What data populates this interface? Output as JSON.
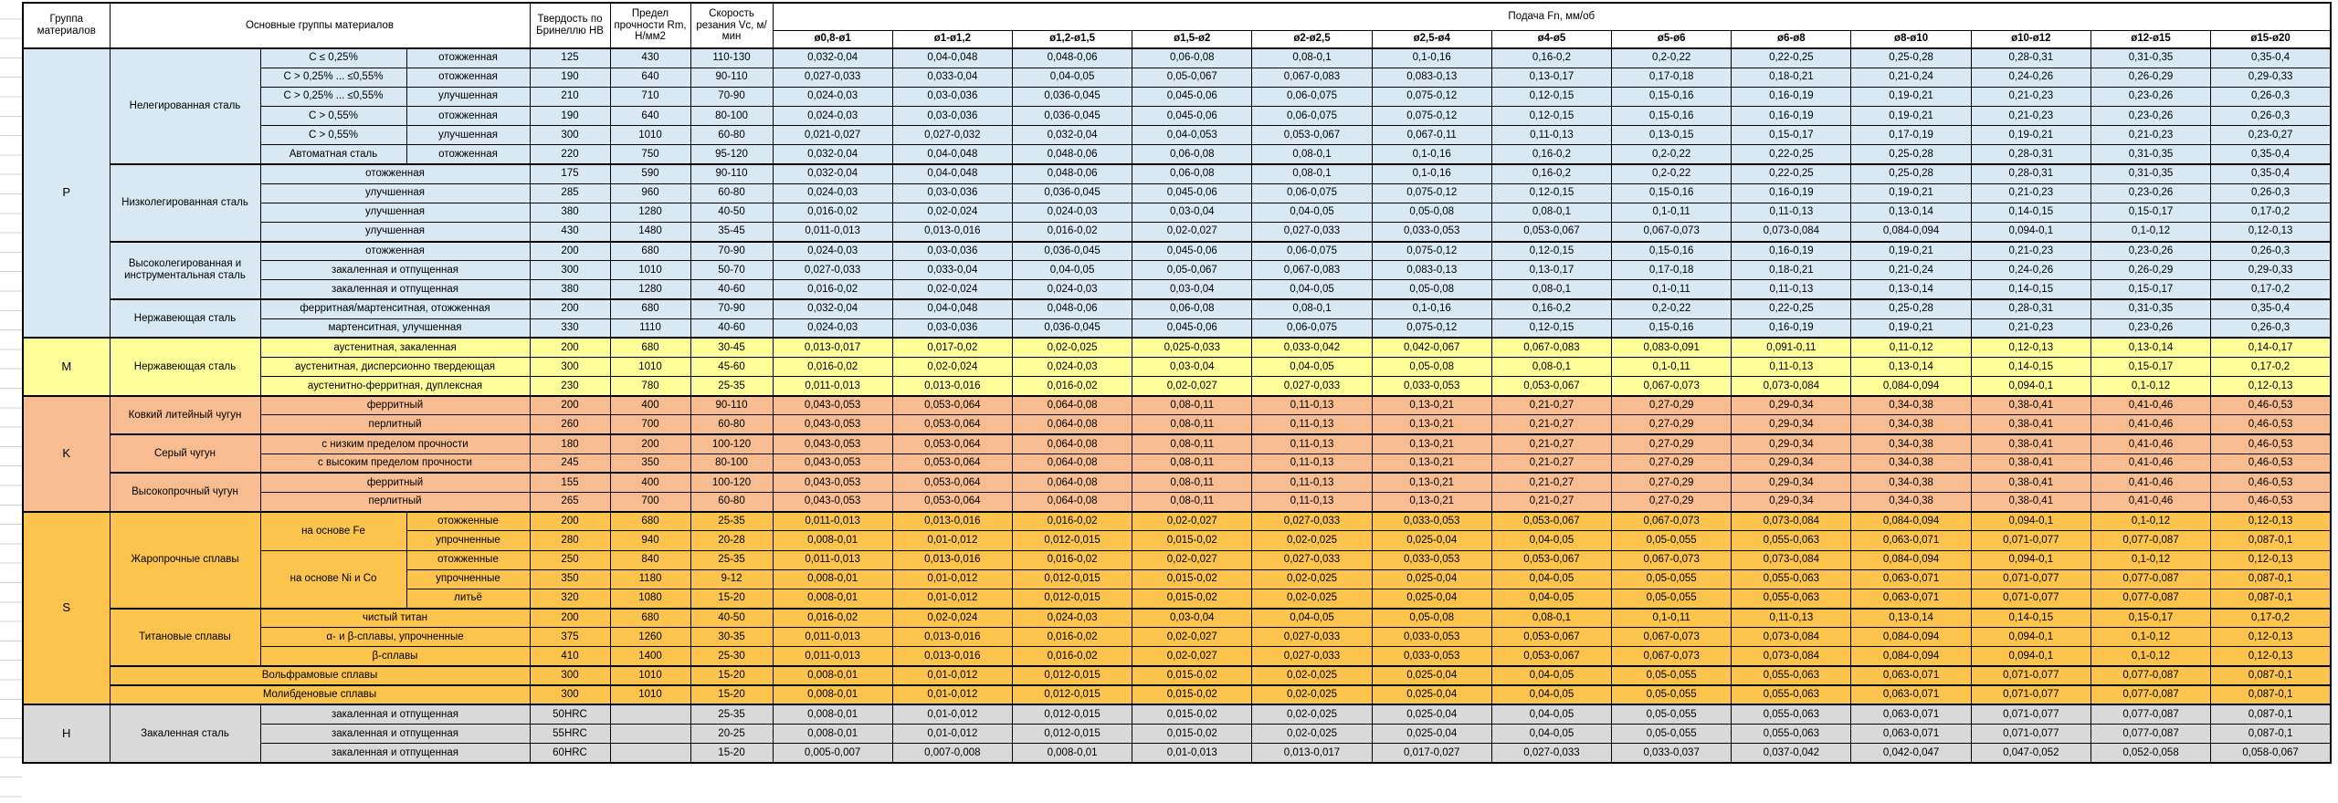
{
  "header": {
    "group": "Группа материалов",
    "main_groups": "Основные группы материалов",
    "hardness": "Твердость по Бринеллю HB",
    "strength": "Предел прочности Rm, Н/мм2",
    "speed": "Скорость резания Vc, м/мин",
    "feed": "Подача Fn, мм/об",
    "diameters": [
      "ø0,8-ø1",
      "ø1-ø1,2",
      "ø1,2-ø1,5",
      "ø1,5-ø2",
      "ø2-ø2,5",
      "ø2,5-ø4",
      "ø4-ø5",
      "ø5-ø6",
      "ø6-ø8",
      "ø8-ø10",
      "ø10-ø12",
      "ø12-ø15",
      "ø15-ø20"
    ]
  },
  "colors": {
    "P": "#D9E9F3",
    "M": "#FFFF99",
    "K": "#F7BC8F",
    "S": "#FCC44D",
    "H": "#D9D9D9",
    "grid": "#000000",
    "sheet_line": "#d4d4d4"
  },
  "feed_profiles": {
    "A": [
      "0,032-0,04",
      "0,04-0,048",
      "0,048-0,06",
      "0,06-0,08",
      "0,08-0,1",
      "0,1-0,16",
      "0,16-0,2",
      "0,2-0,22",
      "0,22-0,25",
      "0,25-0,28",
      "0,28-0,31",
      "0,31-0,35",
      "0,35-0,4"
    ],
    "B": [
      "0,027-0,033",
      "0,033-0,04",
      "0,04-0,05",
      "0,05-0,067",
      "0,067-0,083",
      "0,083-0,13",
      "0,13-0,17",
      "0,17-0,18",
      "0,18-0,21",
      "0,21-0,24",
      "0,24-0,26",
      "0,26-0,29",
      "0,29-0,33"
    ],
    "C": [
      "0,024-0,03",
      "0,03-0,036",
      "0,036-0,045",
      "0,045-0,06",
      "0,06-0,075",
      "0,075-0,12",
      "0,12-0,15",
      "0,15-0,16",
      "0,16-0,19",
      "0,19-0,21",
      "0,21-0,23",
      "0,23-0,26",
      "0,26-0,3"
    ],
    "D": [
      "0,021-0,027",
      "0,027-0,032",
      "0,032-0,04",
      "0,04-0,053",
      "0,053-0,067",
      "0,067-0,11",
      "0,11-0,13",
      "0,13-0,15",
      "0,15-0,17",
      "0,17-0,19",
      "0,19-0,21",
      "0,21-0,23",
      "0,23-0,27"
    ],
    "E": [
      "0,016-0,02",
      "0,02-0,024",
      "0,024-0,03",
      "0,03-0,04",
      "0,04-0,05",
      "0,05-0,08",
      "0,08-0,1",
      "0,1-0,11",
      "0,11-0,13",
      "0,13-0,14",
      "0,14-0,15",
      "0,15-0,17",
      "0,17-0,2"
    ],
    "F": [
      "0,011-0,013",
      "0,013-0,016",
      "0,016-0,02",
      "0,02-0,027",
      "0,027-0,033",
      "0,033-0,053",
      "0,053-0,067",
      "0,067-0,073",
      "0,073-0,084",
      "0,084-0,094",
      "0,094-0,1",
      "0,1-0,12",
      "0,12-0,13"
    ],
    "G": [
      "0,013-0,017",
      "0,017-0,02",
      "0,02-0,025",
      "0,025-0,033",
      "0,033-0,042",
      "0,042-0,067",
      "0,067-0,083",
      "0,083-0,091",
      "0,091-0,11",
      "0,11-0,12",
      "0,12-0,13",
      "0,13-0,14",
      "0,14-0,17"
    ],
    "H": [
      "0,043-0,053",
      "0,053-0,064",
      "0,064-0,08",
      "0,08-0,11",
      "0,11-0,13",
      "0,13-0,21",
      "0,21-0,27",
      "0,27-0,29",
      "0,29-0,34",
      "0,34-0,38",
      "0,38-0,41",
      "0,41-0,46",
      "0,46-0,53"
    ],
    "I": [
      "0,008-0,01",
      "0,01-0,012",
      "0,012-0,015",
      "0,015-0,02",
      "0,02-0,025",
      "0,025-0,04",
      "0,04-0,05",
      "0,05-0,055",
      "0,055-0,063",
      "0,063-0,071",
      "0,071-0,077",
      "0,077-0,087",
      "0,087-0,1"
    ],
    "J": [
      "0,005-0,007",
      "0,007-0,008",
      "0,008-0,01",
      "0,01-0,013",
      "0,013-0,017",
      "0,017-0,027",
      "0,027-0,033",
      "0,033-0,037",
      "0,037-0,042",
      "0,042-0,047",
      "0,047-0,052",
      "0,052-0,058",
      "0,058-0,067"
    ]
  },
  "groups": [
    {
      "letter": "P",
      "blocks_rows": [
        {
          "left": [
            {
              "t": "Нелегированная сталь",
              "rs": 6
            },
            {
              "t": "C ≤ 0,25%"
            },
            {
              "t": "отожженная"
            }
          ],
          "hb": "125",
          "rm": "430",
          "vc": "110-130",
          "f": "A",
          "bs": true
        },
        {
          "left": [
            {
              "t": "C > 0,25% ... ≤0,55%"
            },
            {
              "t": "отожженная"
            }
          ],
          "hb": "190",
          "rm": "640",
          "vc": "90-110",
          "f": "B"
        },
        {
          "left": [
            {
              "t": "C > 0,25% ... ≤0,55%"
            },
            {
              "t": "улучшенная"
            }
          ],
          "hb": "210",
          "rm": "710",
          "vc": "70-90",
          "f": "C"
        },
        {
          "left": [
            {
              "t": "C > 0,55%"
            },
            {
              "t": "отожженная"
            }
          ],
          "hb": "190",
          "rm": "640",
          "vc": "80-100",
          "f": "C"
        },
        {
          "left": [
            {
              "t": "C > 0,55%"
            },
            {
              "t": "улучшенная"
            }
          ],
          "hb": "300",
          "rm": "1010",
          "vc": "60-80",
          "f": "D"
        },
        {
          "left": [
            {
              "t": "Автоматная сталь"
            },
            {
              "t": "отожженная"
            }
          ],
          "hb": "220",
          "rm": "750",
          "vc": "95-120",
          "f": "A"
        },
        {
          "left": [
            {
              "t": "Низколегированная сталь",
              "rs": 4
            },
            {
              "t": "отожженная",
              "cs": 2
            }
          ],
          "hb": "175",
          "rm": "590",
          "vc": "90-110",
          "f": "A",
          "bs": true
        },
        {
          "left": [
            {
              "t": "улучшенная",
              "cs": 2
            }
          ],
          "hb": "285",
          "rm": "960",
          "vc": "60-80",
          "f": "C"
        },
        {
          "left": [
            {
              "t": "улучшенная",
              "cs": 2
            }
          ],
          "hb": "380",
          "rm": "1280",
          "vc": "40-50",
          "f": "E"
        },
        {
          "left": [
            {
              "t": "улучшенная",
              "cs": 2
            }
          ],
          "hb": "430",
          "rm": "1480",
          "vc": "35-45",
          "f": "F"
        },
        {
          "left": [
            {
              "t": "Высоколегированная и инструментальная сталь",
              "rs": 3
            },
            {
              "t": "отожженная",
              "cs": 2
            }
          ],
          "hb": "200",
          "rm": "680",
          "vc": "70-90",
          "f": "C",
          "bs": true
        },
        {
          "left": [
            {
              "t": "закаленная и отпущенная",
              "cs": 2
            }
          ],
          "hb": "300",
          "rm": "1010",
          "vc": "50-70",
          "f": "B"
        },
        {
          "left": [
            {
              "t": "закаленная и отпущенная",
              "cs": 2
            }
          ],
          "hb": "380",
          "rm": "1280",
          "vc": "40-60",
          "f": "E"
        },
        {
          "left": [
            {
              "t": "Нержавеющая сталь",
              "rs": 2
            },
            {
              "t": "ферритная/мартенситная, отожженная",
              "cs": 2
            }
          ],
          "hb": "200",
          "rm": "680",
          "vc": "70-90",
          "f": "A",
          "bs": true
        },
        {
          "left": [
            {
              "t": "мартенситная, улучшенная",
              "cs": 2
            }
          ],
          "hb": "330",
          "rm": "1110",
          "vc": "40-60",
          "f": "C"
        }
      ]
    },
    {
      "letter": "M",
      "blocks_rows": [
        {
          "left": [
            {
              "t": "Нержавеющая сталь",
              "rs": 3
            },
            {
              "t": "аустенитная, закаленная",
              "cs": 2
            }
          ],
          "hb": "200",
          "rm": "680",
          "vc": "30-45",
          "f": "G"
        },
        {
          "left": [
            {
              "t": "аустенитная, дисперсионно твердеющая",
              "cs": 2
            }
          ],
          "hb": "300",
          "rm": "1010",
          "vc": "45-60",
          "f": "E"
        },
        {
          "left": [
            {
              "t": "аустенитно-ферритная, дуплексная",
              "cs": 2
            }
          ],
          "hb": "230",
          "rm": "780",
          "vc": "25-35",
          "f": "F"
        }
      ]
    },
    {
      "letter": "K",
      "blocks_rows": [
        {
          "left": [
            {
              "t": "Ковкий литейный чугун",
              "rs": 2
            },
            {
              "t": "ферритный",
              "cs": 2
            }
          ],
          "hb": "200",
          "rm": "400",
          "vc": "90-110",
          "f": "H"
        },
        {
          "left": [
            {
              "t": "перлитный",
              "cs": 2
            }
          ],
          "hb": "260",
          "rm": "700",
          "vc": "60-80",
          "f": "H"
        },
        {
          "left": [
            {
              "t": "Серый чугун",
              "rs": 2
            },
            {
              "t": "с низким пределом прочности",
              "cs": 2
            }
          ],
          "hb": "180",
          "rm": "200",
          "vc": "100-120",
          "f": "H",
          "bs": true
        },
        {
          "left": [
            {
              "t": "с высоким пределом прочности",
              "cs": 2
            }
          ],
          "hb": "245",
          "rm": "350",
          "vc": "80-100",
          "f": "H"
        },
        {
          "left": [
            {
              "t": "Высокопрочный чугун",
              "rs": 2
            },
            {
              "t": "ферритный",
              "cs": 2
            }
          ],
          "hb": "155",
          "rm": "400",
          "vc": "100-120",
          "f": "H",
          "bs": true
        },
        {
          "left": [
            {
              "t": "перлитный",
              "cs": 2
            }
          ],
          "hb": "265",
          "rm": "700",
          "vc": "60-80",
          "f": "H"
        }
      ]
    },
    {
      "letter": "S",
      "blocks_rows": [
        {
          "left": [
            {
              "t": "Жаропрочные сплавы",
              "rs": 5
            },
            {
              "t": "на основе Fe",
              "rs": 2
            },
            {
              "t": "отожженные"
            }
          ],
          "hb": "200",
          "rm": "680",
          "vc": "25-35",
          "f": "F"
        },
        {
          "left": [
            {
              "t": "упрочненные"
            }
          ],
          "hb": "280",
          "rm": "940",
          "vc": "20-28",
          "f": "I"
        },
        {
          "left": [
            {
              "t": "на основе Ni и Co",
              "rs": 3
            },
            {
              "t": "отожженные"
            }
          ],
          "hb": "250",
          "rm": "840",
          "vc": "25-35",
          "f": "F"
        },
        {
          "left": [
            {
              "t": "упрочненные"
            }
          ],
          "hb": "350",
          "rm": "1180",
          "vc": "9-12",
          "f": "I"
        },
        {
          "left": [
            {
              "t": "литьё"
            }
          ],
          "hb": "320",
          "rm": "1080",
          "vc": "15-20",
          "f": "I"
        },
        {
          "left": [
            {
              "t": "Титановые сплавы",
              "rs": 3
            },
            {
              "t": "чистый титан",
              "cs": 2
            }
          ],
          "hb": "200",
          "rm": "680",
          "vc": "40-50",
          "f": "E",
          "bs": true
        },
        {
          "left": [
            {
              "t": "α- и β-сплавы, упрочненные",
              "cs": 2
            }
          ],
          "hb": "375",
          "rm": "1260",
          "vc": "30-35",
          "f": "F"
        },
        {
          "left": [
            {
              "t": "β-сплавы",
              "cs": 2
            }
          ],
          "hb": "410",
          "rm": "1400",
          "vc": "25-30",
          "f": "F"
        },
        {
          "left": [
            {
              "t": "Вольфрамовые сплавы",
              "cs": 3
            }
          ],
          "hb": "300",
          "rm": "1010",
          "vc": "15-20",
          "f": "I",
          "bs": true
        },
        {
          "left": [
            {
              "t": "Молибденовые сплавы",
              "cs": 3
            }
          ],
          "hb": "300",
          "rm": "1010",
          "vc": "15-20",
          "f": "I",
          "bs": true
        }
      ]
    },
    {
      "letter": "H",
      "blocks_rows": [
        {
          "left": [
            {
              "t": "Закаленная сталь",
              "rs": 3
            },
            {
              "t": "закаленная и отпущенная",
              "cs": 2
            }
          ],
          "hb": "50HRC",
          "rm": "",
          "vc": "25-35",
          "f": "I"
        },
        {
          "left": [
            {
              "t": "закаленная и отпущенная",
              "cs": 2
            }
          ],
          "hb": "55HRC",
          "rm": "",
          "vc": "20-25",
          "f": "I"
        },
        {
          "left": [
            {
              "t": "закаленная и отпущенная",
              "cs": 2
            }
          ],
          "hb": "60HRC",
          "rm": "",
          "vc": "15-20",
          "f": "J"
        }
      ]
    }
  ]
}
